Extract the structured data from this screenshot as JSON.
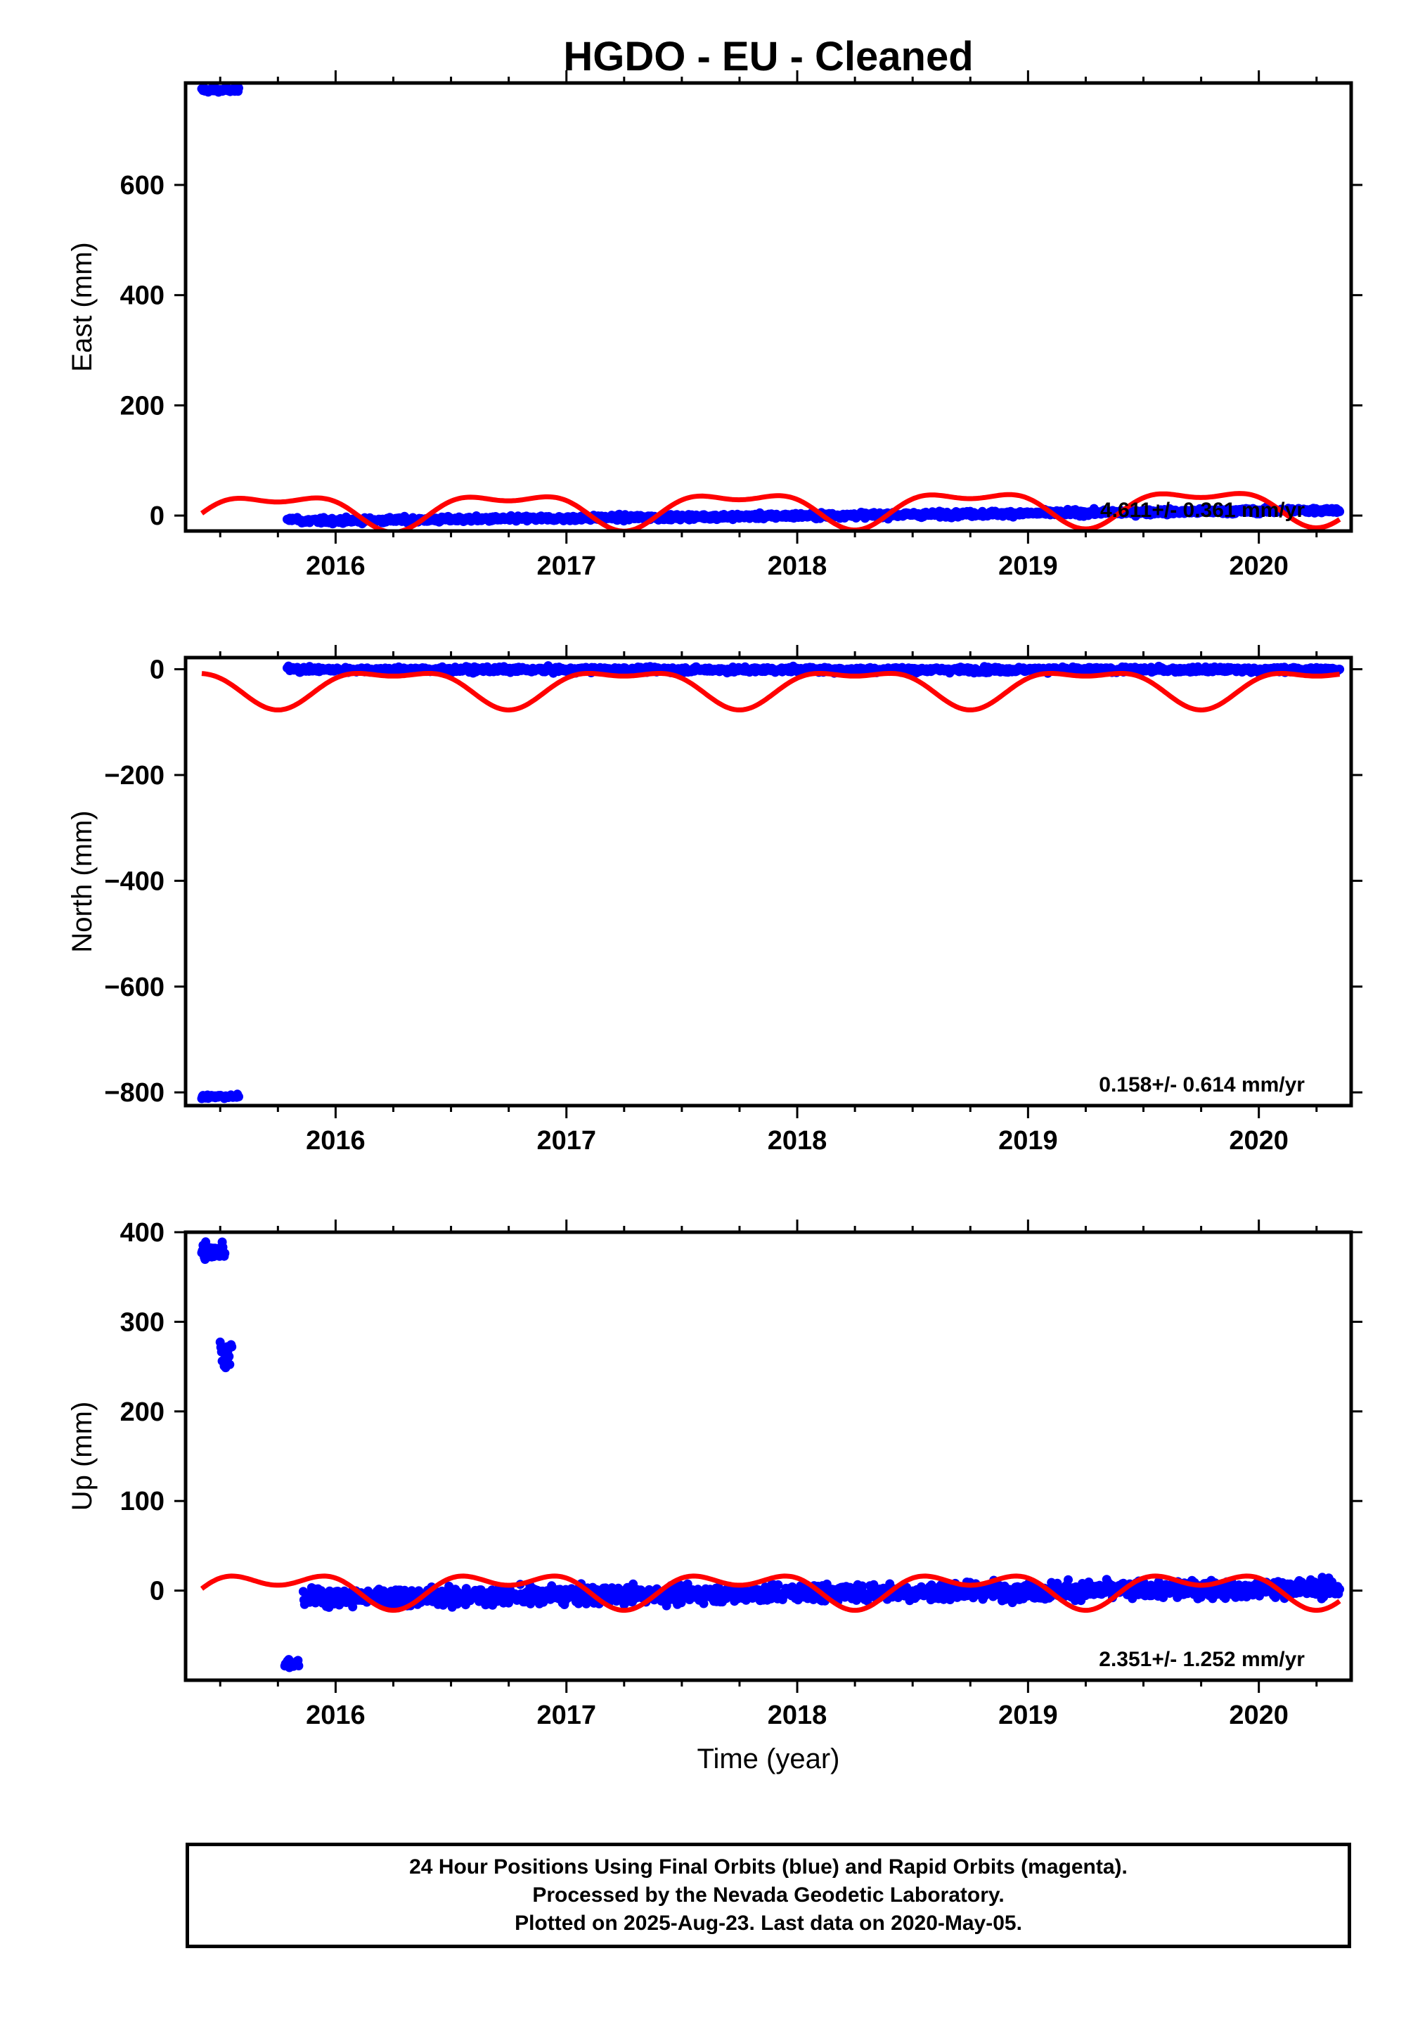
{
  "title": "HGDO  - EU - Cleaned",
  "chart_data": [
    {
      "type": "scatter",
      "ylabel": "East (mm)",
      "xlabel": "",
      "xlim": [
        2015.35,
        2020.4
      ],
      "ylim": [
        -28,
        785
      ],
      "yticks": [
        0,
        200,
        400,
        600
      ],
      "ytick_labels": [
        "0",
        "200",
        "400",
        "600"
      ],
      "xticks": [
        2016,
        2017,
        2018,
        2019,
        2020
      ],
      "xtick_labels": [
        "2016",
        "2017",
        "2018",
        "2019",
        "2020"
      ],
      "rate_text": "4.611+/- 0.361 mm/yr",
      "data_ranges": [
        {
          "x_start": 2015.42,
          "x_end": 2015.58,
          "y_start": 772,
          "y_end": 772,
          "noise": 3
        },
        {
          "x_start": 2015.79,
          "x_end": 2015.84,
          "y_start": -5,
          "y_end": -7,
          "noise": 3
        },
        {
          "x_start": 2015.84,
          "x_end": 2020.35,
          "y_start": -10,
          "y_end": 10,
          "noise": 4
        }
      ],
      "model": {
        "start": 2015.42,
        "end": 2020.35,
        "linear_start": 10,
        "linear_end": 20,
        "annual_amp": 28,
        "annual_phase": 2015.5,
        "semi_amp": 14,
        "semi_phase": 2015.0,
        "line_width": 7,
        "color": "#ff0000"
      },
      "point_color": "#0000ff"
    },
    {
      "type": "scatter",
      "ylabel": "North (mm)",
      "xlabel": "",
      "xlim": [
        2015.35,
        2020.4
      ],
      "ylim": [
        -825,
        22
      ],
      "yticks": [
        -800,
        -600,
        -400,
        -200,
        0
      ],
      "ytick_labels": [
        "−800",
        "−600",
        "−400",
        "−200",
        "0"
      ],
      "xticks": [
        2016,
        2017,
        2018,
        2019,
        2020
      ],
      "xtick_labels": [
        "2016",
        "2017",
        "2018",
        "2019",
        "2020"
      ],
      "rate_text": "0.158+/- 0.614 mm/yr",
      "data_ranges": [
        {
          "x_start": 2015.42,
          "x_end": 2015.58,
          "y_start": -808,
          "y_end": -808,
          "noise": 3
        },
        {
          "x_start": 2015.79,
          "x_end": 2015.84,
          "y_start": 2,
          "y_end": 2,
          "noise": 3
        },
        {
          "x_start": 2015.84,
          "x_end": 2020.35,
          "y_start": -1,
          "y_end": -1,
          "noise": 4
        }
      ],
      "model": {
        "start": 2015.42,
        "end": 2020.35,
        "linear_start": -31,
        "linear_end": -31,
        "annual_amp": 32,
        "annual_phase": 2015.0,
        "semi_amp": 14,
        "semi_phase": 2015.0,
        "line_width": 7,
        "color": "#ff0000"
      },
      "point_color": "#0000ff"
    },
    {
      "type": "scatter",
      "ylabel": "Up (mm)",
      "xlabel": "Time (year)",
      "xlim": [
        2015.35,
        2020.4
      ],
      "ylim": [
        -100,
        400
      ],
      "yticks": [
        0,
        100,
        200,
        300,
        400
      ],
      "ytick_labels": [
        "0",
        "100",
        "200",
        "300",
        "400"
      ],
      "xticks": [
        2016,
        2017,
        2018,
        2019,
        2020
      ],
      "xtick_labels": [
        "2016",
        "2017",
        "2018",
        "2019",
        "2020"
      ],
      "rate_text": "2.351+/- 1.252 mm/yr",
      "data_ranges": [
        {
          "x_start": 2015.42,
          "x_end": 2015.52,
          "y_start": 380,
          "y_end": 380,
          "noise": 8
        },
        {
          "x_start": 2015.5,
          "x_end": 2015.55,
          "y_start": 265,
          "y_end": 265,
          "noise": 12
        },
        {
          "x_start": 2015.78,
          "x_end": 2015.84,
          "y_start": -82,
          "y_end": -82,
          "noise": 4
        },
        {
          "x_start": 2015.86,
          "x_end": 2020.35,
          "y_start": -8,
          "y_end": 3,
          "noise": 8
        }
      ],
      "model": {
        "start": 2015.42,
        "end": 2020.35,
        "linear_start": 3,
        "linear_end": 3,
        "annual_amp": 14,
        "annual_phase": 2015.5,
        "semi_amp": 11,
        "semi_phase": 2015.0,
        "line_width": 7,
        "color": "#ff0000"
      },
      "point_color": "#0000ff"
    }
  ],
  "footer": {
    "line1": "24 Hour Positions Using Final Orbits (blue) and Rapid Orbits (magenta).",
    "line2": "Processed by the Nevada Geodetic Laboratory.",
    "line3": "Plotted on 2025-Aug-23. Last data on 2020-May-05."
  }
}
